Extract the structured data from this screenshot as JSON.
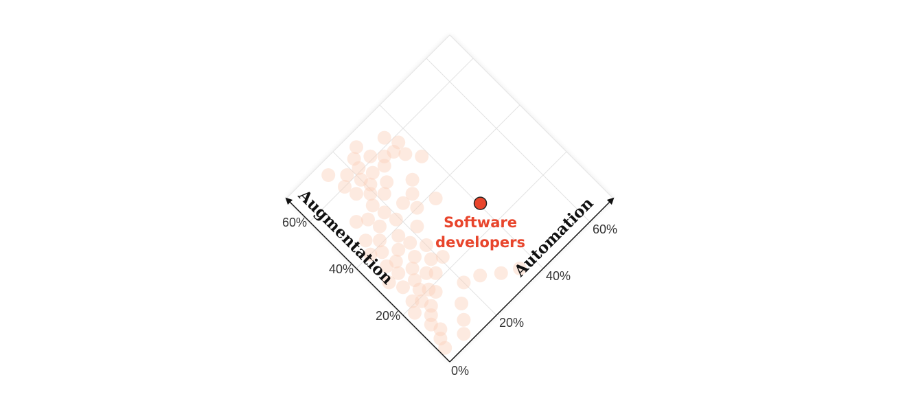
{
  "chart_data": {
    "type": "scatter",
    "xlabel": "Automation",
    "ylabel": "Augmentation",
    "xlim": [
      0,
      70
    ],
    "ylim": [
      0,
      70
    ],
    "xticks": [
      {
        "value": 0,
        "label": "0%"
      },
      {
        "value": 20,
        "label": "20%"
      },
      {
        "value": 40,
        "label": "40%"
      },
      {
        "value": 60,
        "label": "60%"
      }
    ],
    "yticks": [
      {
        "value": 20,
        "label": "20%"
      },
      {
        "value": 40,
        "label": "40%"
      },
      {
        "value": 60,
        "label": "60%"
      }
    ],
    "grid": true,
    "series": [
      {
        "color": "#fbd0ba",
        "x": [
          2,
          3,
          5,
          4,
          6,
          8,
          7,
          9,
          10,
          11,
          12,
          8,
          10,
          13,
          6,
          5,
          12,
          14,
          15,
          9,
          11,
          14,
          16,
          7,
          13,
          17,
          19,
          21,
          18,
          22,
          25,
          24,
          28,
          30,
          27,
          20,
          16,
          22,
          33,
          36,
          18,
          23,
          26,
          15,
          10,
          8,
          6,
          4,
          3,
          16,
          18,
          20,
          17,
          22,
          19,
          24,
          26,
          21,
          15,
          20,
          25,
          30,
          35,
          12,
          9,
          31,
          28,
          32,
          35,
          38,
          34,
          14
        ],
        "values": [
          4,
          7,
          9,
          12,
          14,
          16,
          19,
          22,
          25,
          20,
          28,
          30,
          33,
          35,
          26,
          21,
          18,
          24,
          30,
          38,
          41,
          44,
          38,
          34,
          48,
          50,
          53,
          55,
          46,
          50,
          52,
          57,
          56,
          58,
          61,
          58,
          56,
          61,
          57,
          58,
          62,
          64,
          66,
          60,
          50,
          44,
          40,
          30,
          18,
          22,
          26,
          30,
          34,
          36,
          42,
          44,
          40,
          24,
          10,
          14,
          12,
          8,
          5,
          6,
          3,
          47,
          44,
          38,
          54,
          50,
          62,
          66
        ]
      },
      {
        "name": "Software developers",
        "color": "#e8452c",
        "x": [
          40.5
        ],
        "values": [
          27.4
        ]
      }
    ]
  }
}
